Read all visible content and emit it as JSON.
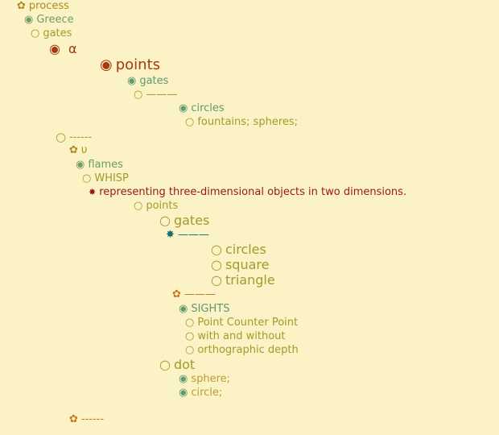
{
  "outline": {
    "nodes": [
      {
        "label": "process",
        "bullet": "✿"
      },
      {
        "label": "Greece",
        "bullet": "◉"
      },
      {
        "label": "gates",
        "bullet": "○"
      },
      {
        "label": "α",
        "bullet": "◉"
      },
      {
        "label": "points",
        "bullet": "◉"
      },
      {
        "label": "gates",
        "bullet": "◉"
      },
      {
        "label": "———",
        "bullet": "○"
      },
      {
        "label": "circles",
        "bullet": "◉"
      },
      {
        "label": "fountains; spheres;",
        "bullet": "○"
      },
      {
        "label": "------",
        "bullet": "○"
      },
      {
        "label": "υ",
        "bullet": "✿"
      },
      {
        "label": "flames",
        "bullet": "◉"
      },
      {
        "label": "WHISP",
        "bullet": "○"
      },
      {
        "label": "representing three-dimensional objects in two dimensions.",
        "bullet": "✸"
      },
      {
        "label": "points",
        "bullet": "○"
      },
      {
        "label": "gates",
        "bullet": "○"
      },
      {
        "label": "———",
        "bullet": "✸"
      },
      {
        "label": "circles",
        "bullet": "○"
      },
      {
        "label": "square",
        "bullet": "○"
      },
      {
        "label": "triangle",
        "bullet": "○"
      },
      {
        "label": "———",
        "bullet": "✿"
      },
      {
        "label": "SIGHTS",
        "bullet": "◉"
      },
      {
        "label": "Point Counter Point",
        "bullet": "○"
      },
      {
        "label": "with and without",
        "bullet": "○"
      },
      {
        "label": "orthographic depth",
        "bullet": "○"
      },
      {
        "label": "dot",
        "bullet": "○"
      },
      {
        "label": "sphere;",
        "bullet": "◉"
      },
      {
        "label": "circle;",
        "bullet": "◉"
      },
      {
        "label": "------",
        "bullet": "✿"
      }
    ]
  }
}
